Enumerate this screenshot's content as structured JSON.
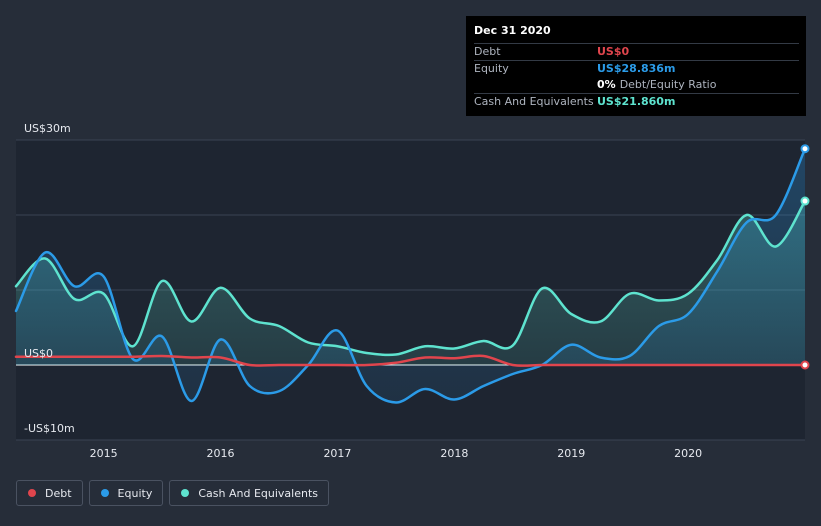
{
  "tooltip": {
    "date": "Dec 31 2020",
    "debt_label": "Debt",
    "debt_value": "US$0",
    "equity_label": "Equity",
    "equity_value": "US$28.836m",
    "ratio_value": "0%",
    "ratio_label": "Debt/Equity Ratio",
    "cash_label": "Cash And Equivalents",
    "cash_value": "US$21.860m"
  },
  "legend": {
    "debt": "Debt",
    "equity": "Equity",
    "cash": "Cash And Equivalents"
  },
  "colors": {
    "debt": "#e0454d",
    "equity": "#2b9be8",
    "cash": "#5ee3cf"
  },
  "chart_data": {
    "type": "line",
    "title": "",
    "xlabel": "",
    "ylabel": "",
    "ylim": [
      -10,
      30
    ],
    "xlim": [
      2014.25,
      2021.0
    ],
    "y_tick_labels": [
      {
        "value": 30,
        "label": "US$30m"
      },
      {
        "value": 0,
        "label": "US$0"
      },
      {
        "value": -10,
        "label": "-US$10m"
      }
    ],
    "y_gridlines": [
      30,
      20,
      10,
      0,
      -10
    ],
    "x_ticks": [
      {
        "value": 2015,
        "label": "2015"
      },
      {
        "value": 2016,
        "label": "2016"
      },
      {
        "value": 2017,
        "label": "2017"
      },
      {
        "value": 2018,
        "label": "2018"
      },
      {
        "value": 2019,
        "label": "2019"
      },
      {
        "value": 2020,
        "label": "2020"
      }
    ],
    "series": [
      {
        "name": "Cash And Equivalents",
        "key": "cash",
        "points": [
          [
            2014.25,
            10.5
          ],
          [
            2014.5,
            14.2
          ],
          [
            2014.75,
            8.8
          ],
          [
            2015.0,
            9.5
          ],
          [
            2015.25,
            2.5
          ],
          [
            2015.5,
            11.2
          ],
          [
            2015.75,
            5.8
          ],
          [
            2016.0,
            10.3
          ],
          [
            2016.25,
            6.2
          ],
          [
            2016.5,
            5.2
          ],
          [
            2016.75,
            3.0
          ],
          [
            2017.0,
            2.5
          ],
          [
            2017.25,
            1.6
          ],
          [
            2017.5,
            1.4
          ],
          [
            2017.75,
            2.5
          ],
          [
            2018.0,
            2.2
          ],
          [
            2018.25,
            3.2
          ],
          [
            2018.5,
            2.6
          ],
          [
            2018.75,
            10.2
          ],
          [
            2019.0,
            6.8
          ],
          [
            2019.25,
            5.8
          ],
          [
            2019.5,
            9.5
          ],
          [
            2019.75,
            8.6
          ],
          [
            2020.0,
            9.5
          ],
          [
            2020.25,
            14.0
          ],
          [
            2020.5,
            20.0
          ],
          [
            2020.75,
            15.8
          ],
          [
            2021.0,
            21.86
          ]
        ]
      },
      {
        "name": "Equity",
        "key": "equity",
        "points": [
          [
            2014.25,
            7.2
          ],
          [
            2014.5,
            15.0
          ],
          [
            2014.75,
            10.5
          ],
          [
            2015.0,
            11.8
          ],
          [
            2015.25,
            0.8
          ],
          [
            2015.5,
            3.8
          ],
          [
            2015.75,
            -4.8
          ],
          [
            2016.0,
            3.4
          ],
          [
            2016.25,
            -2.8
          ],
          [
            2016.5,
            -3.5
          ],
          [
            2016.75,
            0.0
          ],
          [
            2017.0,
            4.6
          ],
          [
            2017.25,
            -2.8
          ],
          [
            2017.5,
            -5.0
          ],
          [
            2017.75,
            -3.2
          ],
          [
            2018.0,
            -4.6
          ],
          [
            2018.25,
            -2.8
          ],
          [
            2018.5,
            -1.2
          ],
          [
            2018.75,
            0.0
          ],
          [
            2019.0,
            2.7
          ],
          [
            2019.25,
            1.0
          ],
          [
            2019.5,
            1.2
          ],
          [
            2019.75,
            5.2
          ],
          [
            2020.0,
            6.8
          ],
          [
            2020.25,
            12.5
          ],
          [
            2020.5,
            19.0
          ],
          [
            2020.75,
            20.0
          ],
          [
            2021.0,
            28.836
          ]
        ]
      },
      {
        "name": "Debt",
        "key": "debt",
        "points": [
          [
            2014.25,
            1.1
          ],
          [
            2014.5,
            1.1
          ],
          [
            2014.75,
            1.1
          ],
          [
            2015.0,
            1.1
          ],
          [
            2015.25,
            1.1
          ],
          [
            2015.5,
            1.2
          ],
          [
            2015.75,
            1.0
          ],
          [
            2016.0,
            1.0
          ],
          [
            2016.25,
            0.0
          ],
          [
            2016.5,
            0.0
          ],
          [
            2016.75,
            0.0
          ],
          [
            2017.0,
            0.0
          ],
          [
            2017.25,
            0.0
          ],
          [
            2017.5,
            0.3
          ],
          [
            2017.75,
            1.0
          ],
          [
            2018.0,
            0.9
          ],
          [
            2018.25,
            1.2
          ],
          [
            2018.5,
            0.0
          ],
          [
            2018.75,
            0.0
          ],
          [
            2019.0,
            0.0
          ],
          [
            2019.25,
            0.0
          ],
          [
            2019.5,
            0.0
          ],
          [
            2019.75,
            0.0
          ],
          [
            2020.0,
            0.0
          ],
          [
            2020.25,
            0.0
          ],
          [
            2020.5,
            0.0
          ],
          [
            2020.75,
            0.0
          ],
          [
            2021.0,
            0.0
          ]
        ]
      }
    ]
  }
}
